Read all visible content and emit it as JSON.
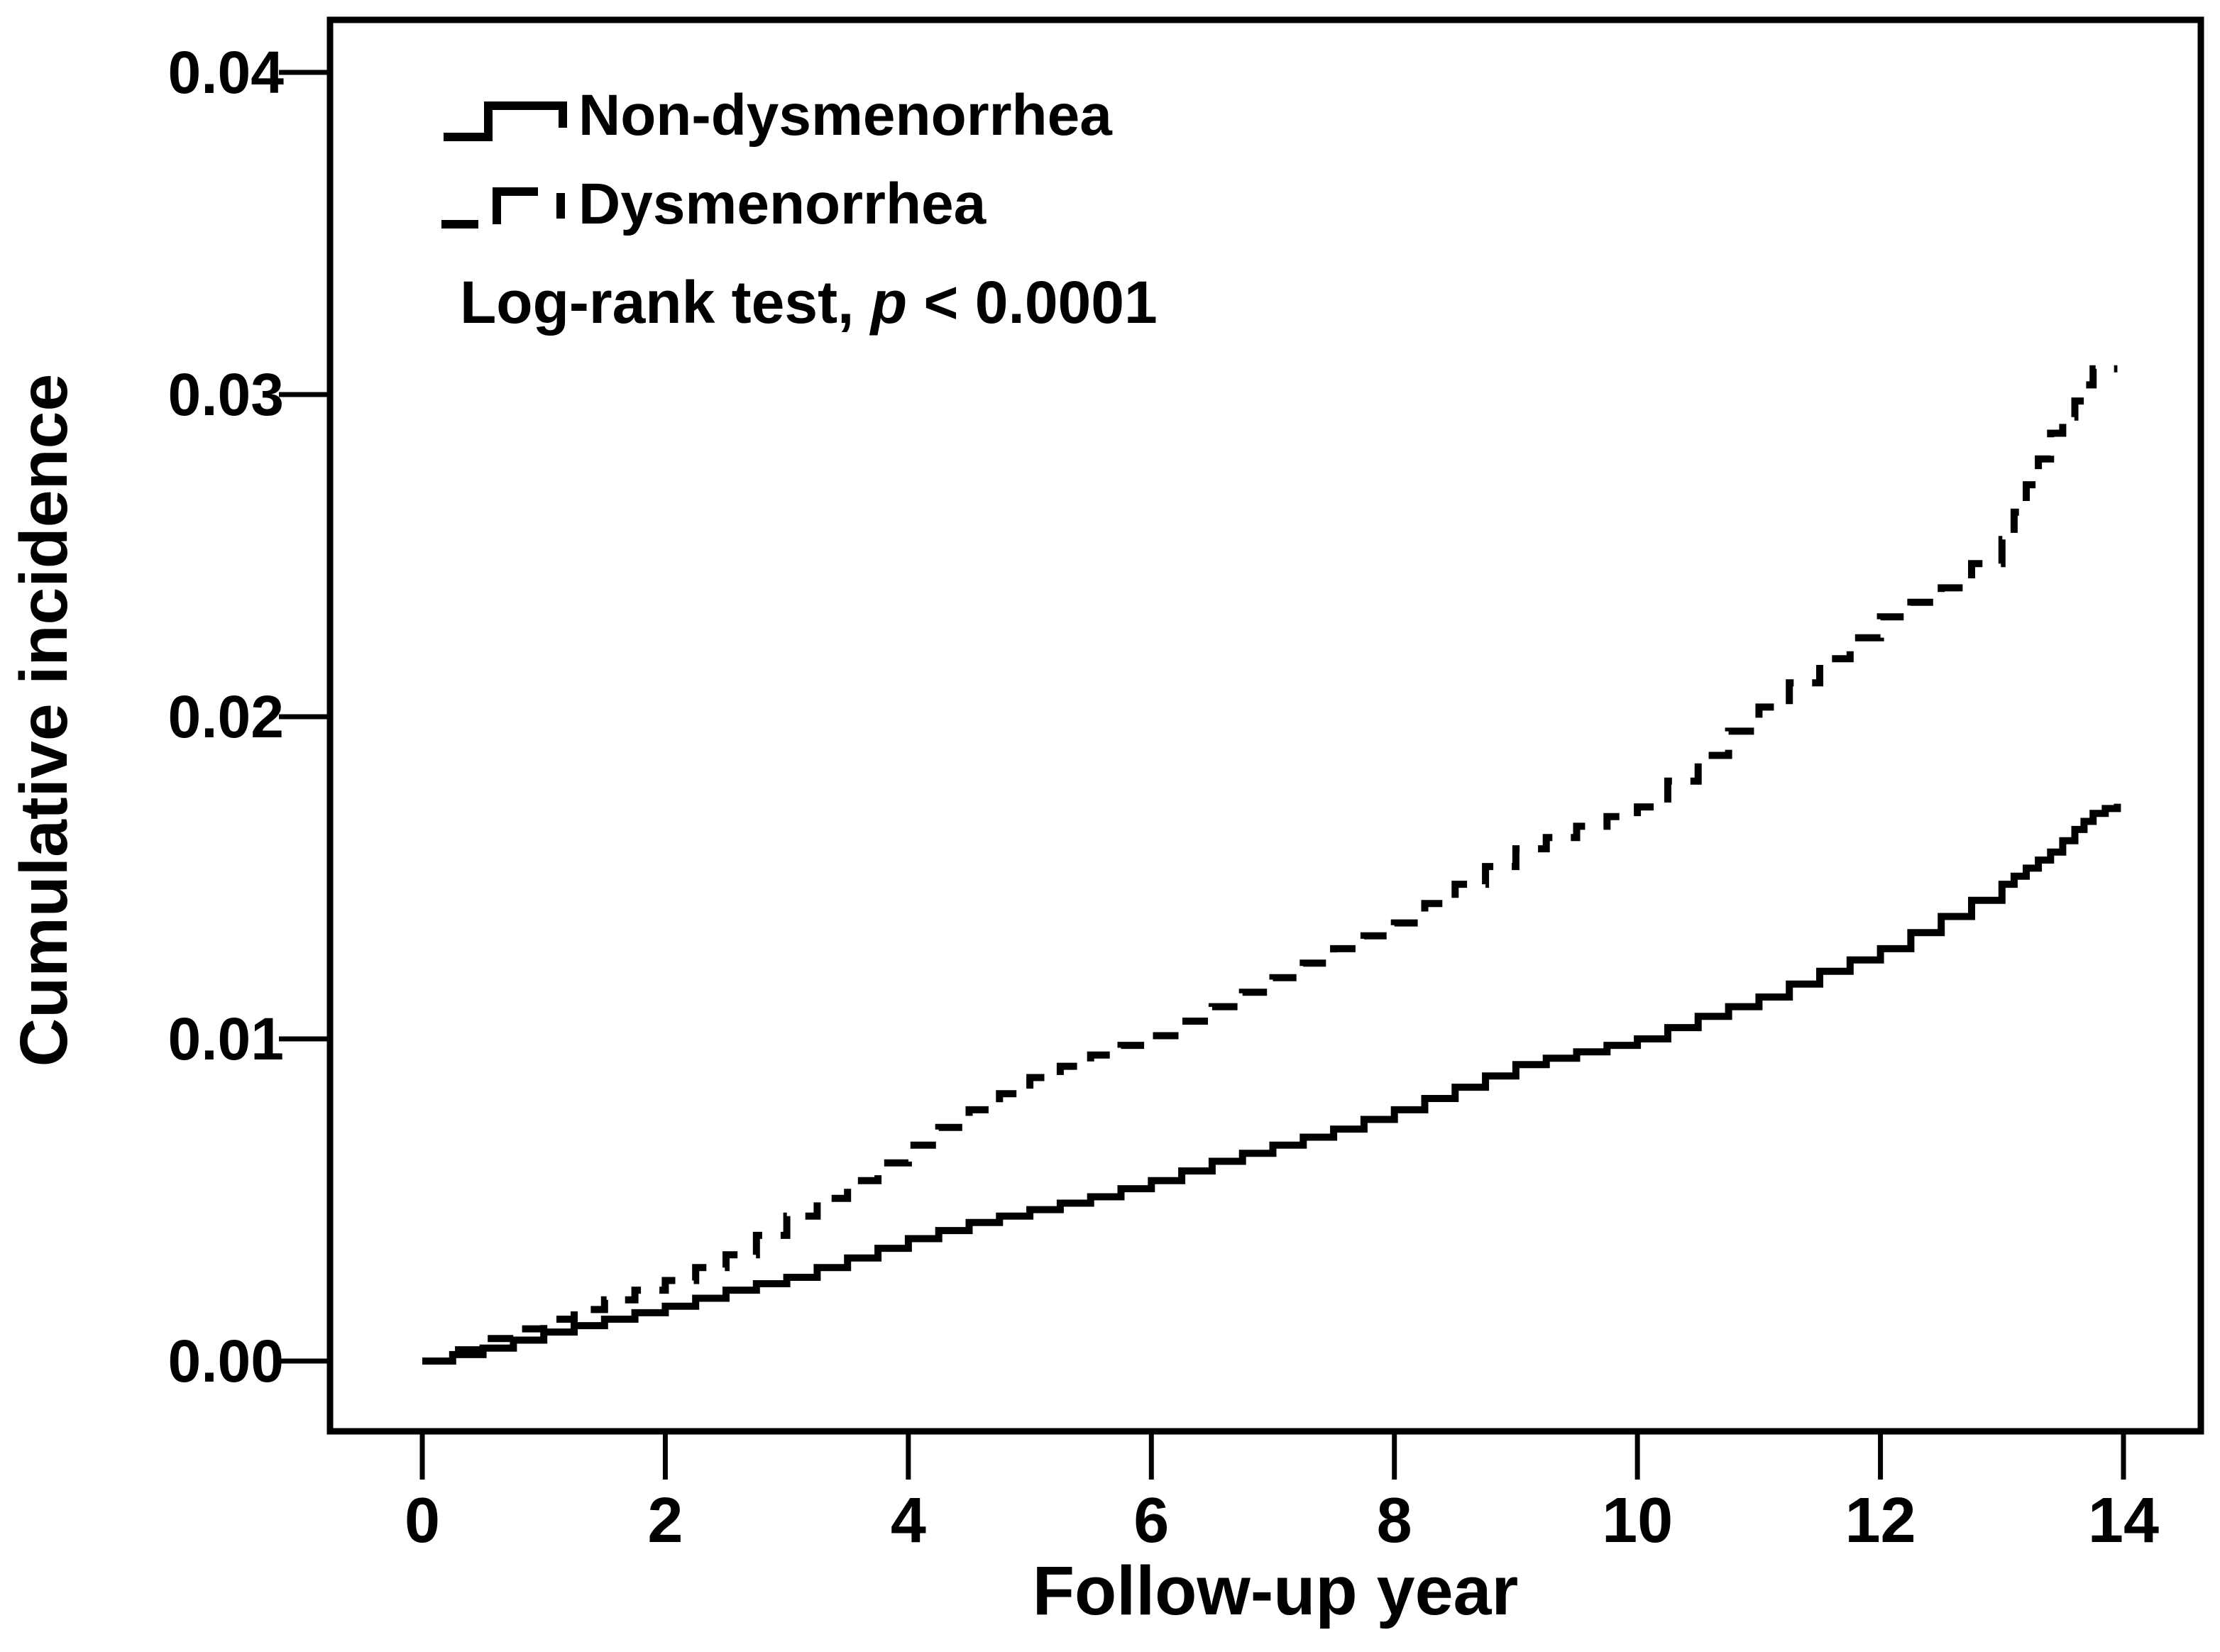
{
  "colors": {
    "line": "#000000",
    "background": "#ffffff"
  },
  "chart_data": {
    "type": "line",
    "subtype": "kaplan-meier-step",
    "title": "",
    "xlabel": "Follow-up year",
    "ylabel": "Cumulative incidence",
    "xlim": [
      0,
      14
    ],
    "ylim": [
      0,
      0.04
    ],
    "grid": false,
    "legend_position": "top-left-inside",
    "x_ticks": [
      0,
      2,
      4,
      6,
      8,
      10,
      12,
      14
    ],
    "x_tick_labels": [
      "0",
      "2",
      "4",
      "6",
      "8",
      "10",
      "12",
      "14"
    ],
    "y_ticks": [
      0.0,
      0.01,
      0.02,
      0.03,
      0.04
    ],
    "y_tick_labels": [
      "0.00",
      "0.01",
      "0.02",
      "0.03",
      "0.04"
    ],
    "annotation": {
      "prefix": "Log-rank test, ",
      "stat_symbol": "p",
      "comparison": " < 0.0001"
    },
    "legend": [
      {
        "label": "Non-dysmenorrhea",
        "line_style": "solid",
        "color": "#000000"
      },
      {
        "label": "Dysmenorrhea",
        "line_style": "dashed",
        "color": "#000000"
      }
    ],
    "x": [
      0,
      0.5,
      1,
      1.5,
      2,
      2.5,
      3,
      3.5,
      4,
      4.5,
      5,
      5.5,
      6,
      6.5,
      7,
      7.5,
      8,
      8.5,
      9,
      9.5,
      10,
      10.5,
      11,
      11.5,
      12,
      12.5,
      13,
      13.2,
      13.4,
      13.6,
      13.75,
      13.95
    ],
    "series": [
      {
        "name": "Non-dysmenorrhea",
        "style": "solid",
        "values": [
          0.0,
          0.0004,
          0.0009,
          0.0013,
          0.0017,
          0.0022,
          0.0026,
          0.0032,
          0.0038,
          0.0043,
          0.0047,
          0.0051,
          0.0056,
          0.0062,
          0.0067,
          0.0072,
          0.0078,
          0.0085,
          0.0092,
          0.0096,
          0.01,
          0.0107,
          0.0113,
          0.0121,
          0.0128,
          0.0138,
          0.0148,
          0.0153,
          0.0158,
          0.0165,
          0.017,
          0.0173
        ]
      },
      {
        "name": "Dysmenorrhea",
        "style": "dashed",
        "values": [
          0.0,
          0.0007,
          0.0013,
          0.0019,
          0.0025,
          0.0033,
          0.0045,
          0.0056,
          0.0067,
          0.0078,
          0.0088,
          0.0095,
          0.0101,
          0.011,
          0.0119,
          0.0128,
          0.0136,
          0.0148,
          0.0159,
          0.0166,
          0.0172,
          0.0188,
          0.0203,
          0.0218,
          0.0231,
          0.024,
          0.0255,
          0.0272,
          0.0288,
          0.0298,
          0.0308,
          0.0308
        ]
      }
    ]
  }
}
